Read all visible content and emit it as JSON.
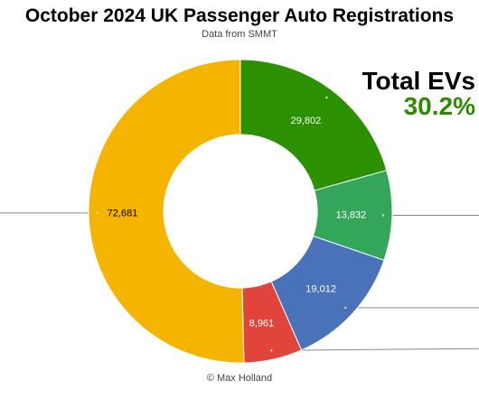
{
  "header": {
    "title": "October 2024 UK Passenger Auto Registrations",
    "subtitle": "Data from SMMT"
  },
  "callout": {
    "label": "Total EVs",
    "value": "30.2%",
    "value_color": "#2e8b00"
  },
  "footer": {
    "credit": "© Max Holland"
  },
  "chart_data": {
    "type": "pie",
    "donut": true,
    "start_angle_deg": 0,
    "slices": [
      {
        "value": 29802,
        "label": "29,802",
        "color": "#2b9100"
      },
      {
        "value": 13832,
        "label": "13,832",
        "color": "#34a65a"
      },
      {
        "value": 19012,
        "label": "19,012",
        "color": "#4a72b8"
      },
      {
        "value": 8961,
        "label": "8,961",
        "color": "#e0443a"
      },
      {
        "value": 72681,
        "label": "72,681",
        "color": "#f5b400"
      }
    ]
  }
}
